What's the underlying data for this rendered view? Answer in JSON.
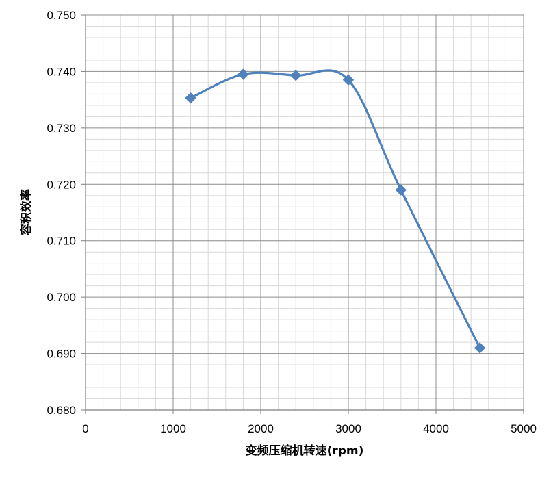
{
  "chart_data": {
    "type": "line",
    "title": "",
    "xlabel": "变频压缩机转速(rpm)",
    "ylabel": "容积效率",
    "xlim": [
      0,
      5000
    ],
    "ylim": [
      0.68,
      0.75
    ],
    "xticks": [
      0,
      1000,
      2000,
      3000,
      4000,
      5000
    ],
    "yticks": [
      0.68,
      0.69,
      0.7,
      0.71,
      0.72,
      0.73,
      0.74,
      0.75
    ],
    "x_tick_labels": [
      "0",
      "1000",
      "2000",
      "3000",
      "4000",
      "5000"
    ],
    "y_tick_labels": [
      "0.680",
      "0.690",
      "0.700",
      "0.710",
      "0.720",
      "0.730",
      "0.740",
      "0.750"
    ],
    "grid": true,
    "smooth": true,
    "series": [
      {
        "x": [
          1200,
          1800,
          2400,
          3000,
          3600,
          4500
        ],
        "y": [
          0.7353,
          0.7395,
          0.7393,
          0.7385,
          0.719,
          0.691
        ],
        "color": "#4F81BD",
        "marker": "diamond"
      }
    ]
  }
}
